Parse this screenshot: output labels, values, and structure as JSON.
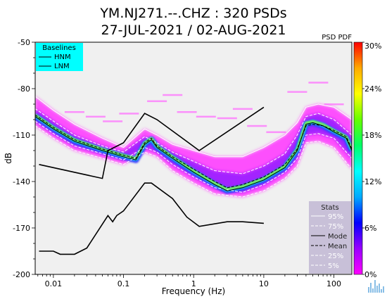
{
  "header": {
    "title_line1": "YM.NJ271.--.CHZ : 320 PSDs",
    "title_line2": "27-JUL-2021 / 02-AUG-2021"
  },
  "corner_label": "PSD PDF",
  "logo_icon": "seismic-waveform-logo-icon",
  "chart_data": {
    "type": "heatmap",
    "xlabel": "Frequency (Hz)",
    "ylabel": "dB",
    "x_scale": "log",
    "xlim": [
      0.0055,
      180
    ],
    "ylim": [
      -200,
      -50
    ],
    "x_ticks": [
      {
        "value": 0.01,
        "label": "0.01"
      },
      {
        "value": 0.1,
        "label": "0.1"
      },
      {
        "value": 1,
        "label": "1"
      },
      {
        "value": 10,
        "label": "10"
      },
      {
        "value": 100,
        "label": "100"
      }
    ],
    "y_ticks": [
      {
        "value": -50,
        "label": "-50"
      },
      {
        "value": -80,
        "label": "-80"
      },
      {
        "value": -110,
        "label": "-110"
      },
      {
        "value": -140,
        "label": "-140"
      },
      {
        "value": -170,
        "label": "-170"
      },
      {
        "value": -200,
        "label": "-200"
      }
    ],
    "colorbar": {
      "min": 0,
      "max": 30,
      "unit": "%",
      "ticks": [
        {
          "value": 30,
          "label": "30%"
        },
        {
          "value": 24,
          "label": "24%"
        },
        {
          "value": 18,
          "label": "18%"
        },
        {
          "value": 12,
          "label": "12%"
        },
        {
          "value": 6,
          "label": "6%"
        },
        {
          "value": 0,
          "label": "0%"
        }
      ],
      "colors": [
        "#ff00ff",
        "#9900ff",
        "#0000ff",
        "#00aaff",
        "#00ffff",
        "#00ff66",
        "#66ff00",
        "#ffff00",
        "#ffaa00",
        "#ff0000"
      ]
    },
    "baselines_legend": {
      "title": "Baselines",
      "entries": [
        "HNM",
        "LNM"
      ],
      "background": "#00ffff"
    },
    "stats_legend": {
      "title": "Stats",
      "entries": [
        "95%",
        "75%",
        "Mode",
        "Mean",
        "25%",
        "5%"
      ],
      "background": "#c8c0d8"
    },
    "series": [
      {
        "name": "HNM",
        "color": "#000000",
        "x": [
          0.00625,
          0.05,
          0.06,
          0.1,
          0.2,
          0.3,
          1.2,
          10
        ],
        "y": [
          -129,
          -138,
          -120,
          -115,
          -96,
          -100,
          -120,
          -92
        ]
      },
      {
        "name": "LNM",
        "color": "#000000",
        "x": [
          0.00625,
          0.01,
          0.0125,
          0.02,
          0.03,
          0.06,
          0.07,
          0.08,
          0.1,
          0.2,
          0.25,
          0.5,
          0.8,
          1.2,
          3,
          5,
          10
        ],
        "y": [
          -185,
          -185,
          -187,
          -187,
          -183,
          -162,
          -166,
          -162,
          -159,
          -141,
          -141,
          -151,
          -163,
          -169,
          -166,
          -166,
          -167
        ]
      },
      {
        "name": "Mode",
        "color": "#000000",
        "x": [
          0.0055,
          0.01,
          0.02,
          0.05,
          0.1,
          0.15,
          0.2,
          0.25,
          0.3,
          0.5,
          1,
          2,
          3,
          5,
          10,
          20,
          30,
          40,
          50,
          70,
          100,
          150,
          180
        ],
        "y": [
          -98,
          -106,
          -114,
          -120,
          -124,
          -126,
          -116,
          -113,
          -118,
          -125,
          -134,
          -142,
          -146,
          -144,
          -139,
          -131,
          -120,
          -103,
          -102,
          -104,
          -108,
          -112,
          -120
        ]
      },
      {
        "name": "Mean",
        "color": "#000000",
        "x": [
          0.0055,
          0.01,
          0.02,
          0.05,
          0.1,
          0.15,
          0.2,
          0.25,
          0.3,
          0.5,
          1,
          2,
          3,
          5,
          10,
          20,
          30,
          40,
          50,
          70,
          100,
          150,
          180
        ],
        "y": [
          -97,
          -105,
          -113,
          -119,
          -123,
          -125,
          -115,
          -112,
          -117,
          -124,
          -132,
          -140,
          -144,
          -142,
          -137,
          -129,
          -119,
          -104,
          -103,
          -104,
          -107,
          -111,
          -119
        ]
      },
      {
        "name": "95%",
        "color": "#ffffff",
        "x": [
          0.0055,
          0.01,
          0.02,
          0.05,
          0.1,
          0.2,
          0.3,
          0.5,
          1,
          2,
          5,
          10,
          20,
          30,
          40,
          60,
          100,
          180
        ],
        "y": [
          -85,
          -94,
          -103,
          -112,
          -118,
          -106,
          -110,
          -116,
          -120,
          -124,
          -124,
          -118,
          -110,
          -102,
          -92,
          -90,
          -92,
          -100
        ]
      },
      {
        "name": "75%",
        "color": "#ffffff",
        "x": [
          0.0055,
          0.01,
          0.02,
          0.05,
          0.1,
          0.2,
          0.3,
          0.5,
          1,
          2,
          5,
          10,
          20,
          30,
          40,
          60,
          100,
          180
        ],
        "y": [
          -93,
          -101,
          -110,
          -117,
          -121,
          -111,
          -115,
          -121,
          -127,
          -133,
          -135,
          -130,
          -122,
          -110,
          -98,
          -96,
          -100,
          -110
        ]
      },
      {
        "name": "25%",
        "color": "#ffffff",
        "x": [
          0.0055,
          0.01,
          0.02,
          0.05,
          0.1,
          0.2,
          0.3,
          0.5,
          1,
          2,
          5,
          10,
          20,
          30,
          40,
          60,
          100,
          180
        ],
        "y": [
          -101,
          -109,
          -117,
          -122,
          -126,
          -118,
          -121,
          -129,
          -137,
          -144,
          -147,
          -142,
          -134,
          -125,
          -110,
          -109,
          -112,
          -125
        ]
      },
      {
        "name": "5%",
        "color": "#ffffff",
        "x": [
          0.0055,
          0.01,
          0.02,
          0.05,
          0.1,
          0.2,
          0.3,
          0.5,
          1,
          2,
          5,
          10,
          20,
          30,
          40,
          60,
          100,
          180
        ],
        "y": [
          -104,
          -112,
          -120,
          -125,
          -129,
          -121,
          -124,
          -133,
          -141,
          -148,
          -150,
          -146,
          -138,
          -130,
          -115,
          -114,
          -118,
          -132
        ]
      }
    ]
  }
}
